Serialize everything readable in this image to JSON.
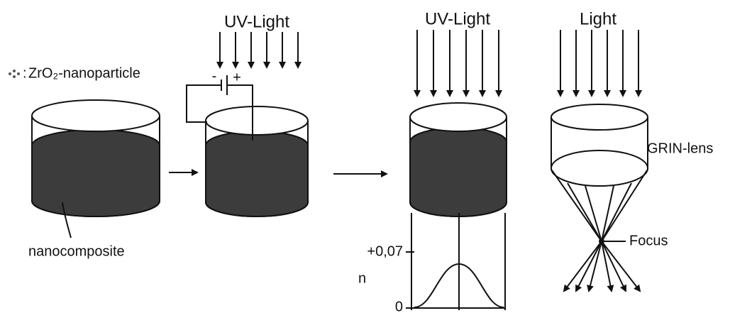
{
  "legend": {
    "symbol": ":",
    "label": "ZrO₂-nanoparticle"
  },
  "labels": {
    "nanocomposite": "nanocomposite",
    "uv_light_1": "UV-Light",
    "minus": "-",
    "plus": "+",
    "uv_light_2": "UV-Light",
    "light": "Light",
    "grin_lens": "GRIN-lens",
    "focus": "Focus",
    "n_axis": "n",
    "n_high": "+0,07",
    "n_zero": "0"
  }
}
